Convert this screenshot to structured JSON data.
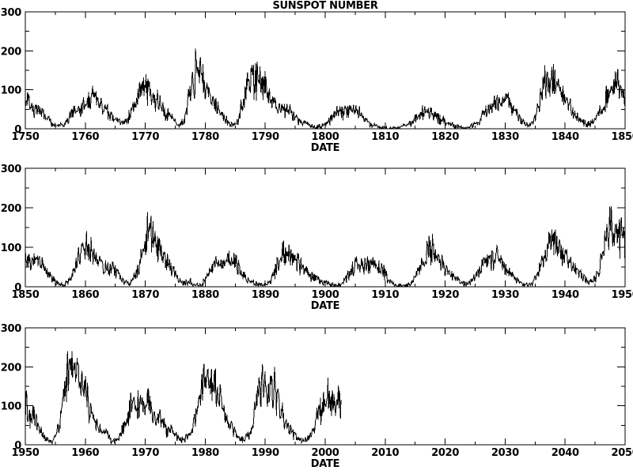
{
  "title": "SUNSPOT NUMBER",
  "chart_data": {
    "type": "line",
    "title": "SUNSPOT NUMBER",
    "xlabel": "DATE",
    "ylabel": "",
    "line_color": "#000000",
    "background_color": "#ffffff",
    "grid": false,
    "legend": false,
    "ylim": [
      0,
      300
    ],
    "yticks": [
      0,
      100,
      200,
      300
    ],
    "ytick_labels": [
      "0",
      "100",
      "200",
      "300"
    ],
    "y_minor_step": 50,
    "x_major_step": 10,
    "x_minor_step": 5,
    "panels": [
      {
        "name": "panel-1750-1850",
        "xlim": [
          1750,
          1850
        ],
        "xtick_labels": [
          "1750",
          "1760",
          "1770",
          "1780",
          "1790",
          "1800",
          "1810",
          "1820",
          "1830",
          "1840",
          "1850"
        ]
      },
      {
        "name": "panel-1850-1950",
        "xlim": [
          1850,
          1950
        ],
        "xtick_labels": [
          "1850",
          "1860",
          "1870",
          "1880",
          "1890",
          "1900",
          "1910",
          "1920",
          "1930",
          "1940",
          "1950"
        ]
      },
      {
        "name": "panel-1950-2050",
        "xlim": [
          1950,
          2050
        ],
        "xtick_labels": [
          "1950",
          "1960",
          "1970",
          "1980",
          "1990",
          "2000",
          "2010",
          "2020",
          "2030",
          "2040",
          "2050"
        ]
      }
    ],
    "series": [
      {
        "name": "monthly sunspot number",
        "start_year": 1750,
        "end_decimal_year": 2002.7,
        "annual_means": [
          83.4,
          47.7,
          47.8,
          30.7,
          12.2,
          9.6,
          10.2,
          32.4,
          47.6,
          54.0,
          62.9,
          85.9,
          61.2,
          45.1,
          36.4,
          20.9,
          11.4,
          37.8,
          69.8,
          106.1,
          100.8,
          81.6,
          66.5,
          34.8,
          30.6,
          7.0,
          19.8,
          92.5,
          154.4,
          125.9,
          84.8,
          68.1,
          38.5,
          22.8,
          10.2,
          24.1,
          82.9,
          132.0,
          130.9,
          118.1,
          89.9,
          66.6,
          60.0,
          46.9,
          41.0,
          21.3,
          16.0,
          6.4,
          4.1,
          6.8,
          14.5,
          34.0,
          45.0,
          43.1,
          47.5,
          42.2,
          28.1,
          10.1,
          8.1,
          2.5,
          0.0,
          1.4,
          5.0,
          12.2,
          13.9,
          35.4,
          45.8,
          41.1,
          30.1,
          23.9,
          15.6,
          6.6,
          4.0,
          1.8,
          8.5,
          16.6,
          36.3,
          49.6,
          64.2,
          67.0,
          70.9,
          47.8,
          27.5,
          8.5,
          13.2,
          56.9,
          121.5,
          138.3,
          103.2,
          85.7,
          64.6,
          36.7,
          24.2,
          10.7,
          15.0,
          40.1,
          61.5,
          98.5,
          124.7,
          96.3,
          66.6,
          64.5,
          54.1,
          39.0,
          20.6,
          6.7,
          4.3,
          22.7,
          54.8,
          93.8,
          95.8,
          77.2,
          59.1,
          44.0,
          47.0,
          30.5,
          16.3,
          7.3,
          37.6,
          74.0,
          139.0,
          111.2,
          101.6,
          66.2,
          44.7,
          17.0,
          11.3,
          12.4,
          3.4,
          6.0,
          32.3,
          54.3,
          59.7,
          63.7,
          63.5,
          52.2,
          25.4,
          13.1,
          6.8,
          6.3,
          7.1,
          35.6,
          73.0,
          85.1,
          78.0,
          64.0,
          41.8,
          26.2,
          26.7,
          12.1,
          9.5,
          2.7,
          5.0,
          24.4,
          42.0,
          63.5,
          53.8,
          62.0,
          48.5,
          43.9,
          18.6,
          5.7,
          3.6,
          1.4,
          9.6,
          47.4,
          57.1,
          103.9,
          80.6,
          63.6,
          37.6,
          26.1,
          14.2,
          5.8,
          16.7,
          44.3,
          63.9,
          69.0,
          77.8,
          64.9,
          35.7,
          21.2,
          11.1,
          5.7,
          8.7,
          36.1,
          79.7,
          114.4,
          109.6,
          88.8,
          67.8,
          47.5,
          30.6,
          16.3,
          9.6,
          33.2,
          92.6,
          151.6,
          136.3,
          134.7,
          83.9,
          69.4,
          31.5,
          13.9,
          4.4,
          38.0,
          141.7,
          190.2,
          184.8,
          159.0,
          112.3,
          53.9,
          37.6,
          27.9,
          10.2,
          15.1,
          47.0,
          93.8,
          105.9,
          105.5,
          104.5,
          66.6,
          68.9,
          38.0,
          34.5,
          15.5,
          12.6,
          27.5,
          92.5,
          155.4,
          154.6,
          140.4,
          115.9,
          66.6,
          45.9,
          17.9,
          13.4,
          29.4,
          100.2,
          157.6,
          142.6,
          145.7,
          94.3,
          54.6,
          29.9,
          17.5,
          8.6,
          21.5,
          64.3,
          93.3,
          119.6,
          111.0,
          104.0,
          63.7
        ]
      }
    ]
  }
}
